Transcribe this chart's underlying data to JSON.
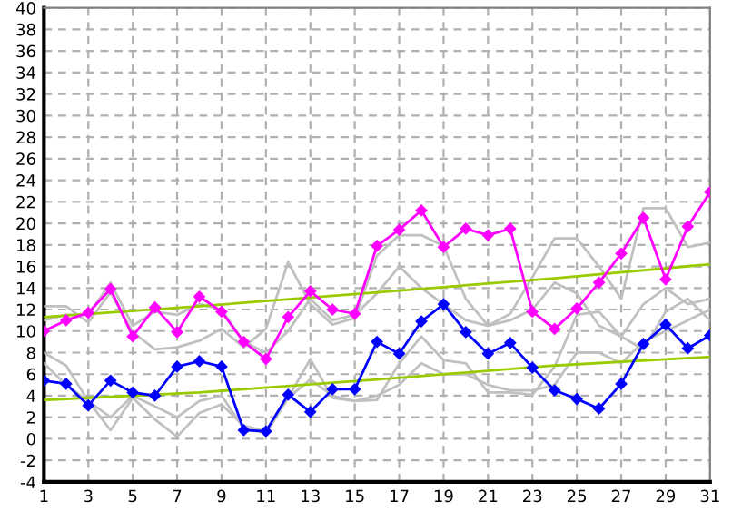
{
  "chart_data": {
    "type": "line",
    "x": [
      1,
      2,
      3,
      4,
      5,
      6,
      7,
      8,
      9,
      10,
      11,
      12,
      13,
      14,
      15,
      16,
      17,
      18,
      19,
      20,
      21,
      22,
      23,
      24,
      25,
      26,
      27,
      28,
      29,
      30,
      31
    ],
    "series": [
      {
        "color": "#c0c0c0",
        "marker": "none",
        "values": [
          12.3,
          12.3,
          10.8,
          13.6,
          9.9,
          8.3,
          8.5,
          9.1,
          10.2,
          8.5,
          10.2,
          16.4,
          12.5,
          10.6,
          11.2,
          17,
          18.9,
          18.9,
          17.9,
          13,
          10.5,
          11.6,
          15,
          18.6,
          18.6,
          16,
          13,
          21.4,
          21.4,
          17.8,
          18.2
        ]
      },
      {
        "color": "#c0c0c0",
        "marker": "none",
        "values": [
          11,
          11.5,
          11.5,
          14.5,
          10.5,
          11.8,
          11.5,
          12.5,
          12,
          9,
          8,
          10,
          13,
          11,
          11.5,
          13.5,
          16,
          14,
          12.5,
          11,
          10.5,
          11,
          12,
          14.5,
          13.5,
          10.5,
          9.5,
          12.5,
          14,
          12.5,
          13
        ]
      },
      {
        "color": "#c0c0c0",
        "marker": "none",
        "values": [
          8,
          6.8,
          3.5,
          0.8,
          3.8,
          1.8,
          0.2,
          2.4,
          3.2,
          1.2,
          0.7,
          3.8,
          7.4,
          3.8,
          3.5,
          3.6,
          7,
          9.5,
          7.3,
          7,
          4.3,
          4.3,
          4.1,
          6.7,
          11.5,
          11.8,
          9.5,
          8.3,
          11.8,
          13,
          11
        ]
      },
      {
        "color": "#c0c0c0",
        "marker": "none",
        "values": [
          7,
          5,
          3.5,
          2,
          4,
          3,
          2,
          3.5,
          4,
          1,
          0.5,
          3.8,
          5.5,
          4,
          3.5,
          4,
          5,
          7,
          6,
          6,
          5,
          4.5,
          4.5,
          5,
          8,
          8,
          7,
          9,
          10,
          11,
          12
        ]
      },
      {
        "color": "#99cc00",
        "marker": "none",
        "x": [
          1,
          8,
          16,
          24,
          31
        ],
        "values": [
          11.3,
          12.3,
          13.6,
          14.9,
          16.2
        ]
      },
      {
        "color": "#99cc00",
        "marker": "none",
        "x": [
          1,
          8,
          16,
          24,
          31
        ],
        "values": [
          3.6,
          4.3,
          5.5,
          6.8,
          7.6
        ]
      },
      {
        "color": "#ff00ff",
        "marker": "diamond",
        "values": [
          10,
          11,
          11.7,
          13.9,
          9.5,
          12.2,
          9.9,
          13.2,
          11.8,
          9,
          7.4,
          11.3,
          13.7,
          12,
          11.6,
          17.9,
          19.4,
          21.2,
          17.8,
          19.5,
          18.9,
          19.5,
          11.8,
          10.2,
          12.1,
          14.5,
          17.2,
          20.5,
          14.8,
          19.7,
          22.9
        ]
      },
      {
        "color": "#0000ff",
        "marker": "diamond",
        "values": [
          5.4,
          5.1,
          3.1,
          5.4,
          4.3,
          4,
          6.7,
          7.2,
          6.7,
          0.8,
          0.7,
          4.1,
          2.5,
          4.6,
          4.6,
          9,
          7.9,
          10.9,
          12.5,
          9.9,
          7.9,
          8.9,
          6.6,
          4.5,
          3.7,
          2.8,
          5.1,
          8.8,
          10.6,
          8.4,
          9.6
        ]
      }
    ],
    "xlim": [
      1,
      31
    ],
    "xticks": [
      1,
      3,
      5,
      7,
      9,
      11,
      13,
      15,
      17,
      19,
      21,
      23,
      25,
      27,
      29,
      31
    ],
    "ylim": [
      -4,
      40
    ],
    "yticks": [
      -4,
      -2,
      0,
      2,
      4,
      6,
      8,
      10,
      12,
      14,
      16,
      18,
      20,
      22,
      24,
      26,
      28,
      30,
      32,
      34,
      36,
      38,
      40
    ],
    "grid": true,
    "line_style": "solid"
  }
}
